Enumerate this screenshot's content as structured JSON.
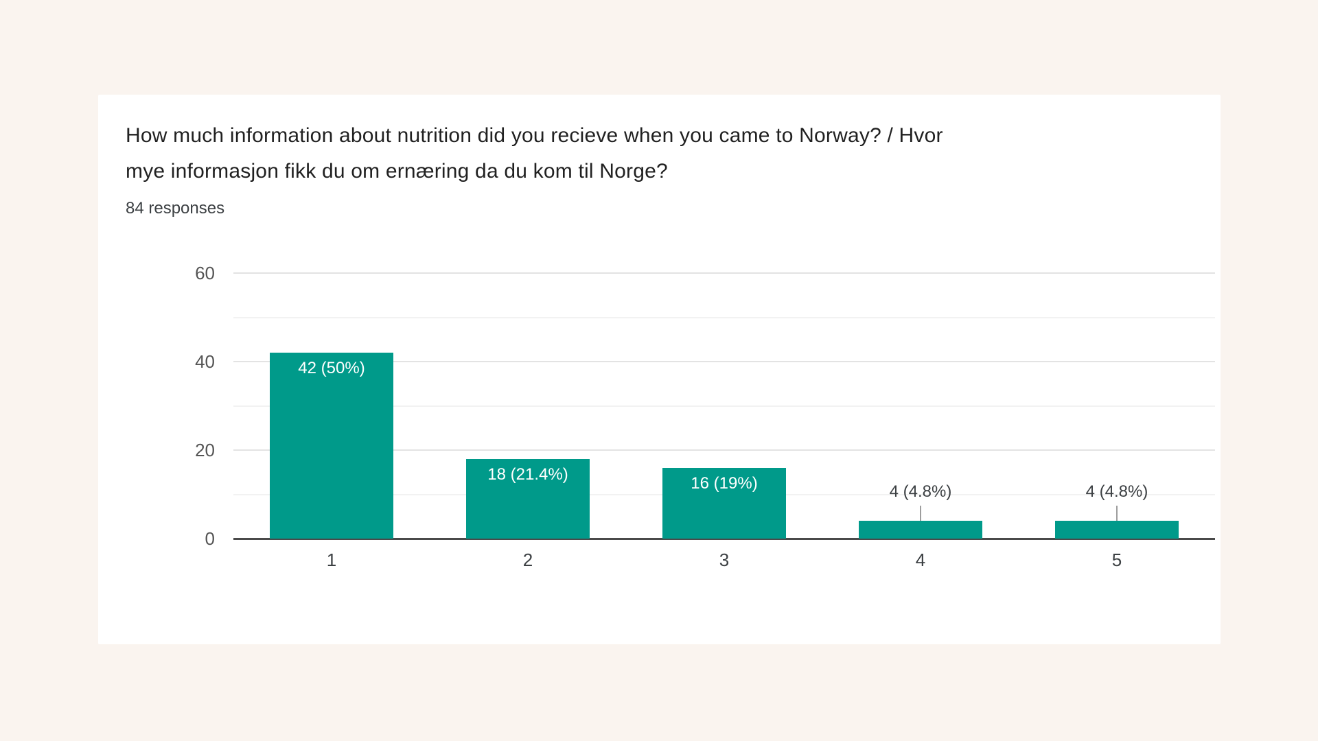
{
  "page": {
    "background_color": "#faf4ef",
    "card_color": "#ffffff"
  },
  "header": {
    "title_lines": [
      "How much information about nutrition did you recieve when you came to Norway? / Hvor",
      "mye informasjon fikk du om ernæring da du kom til Norge?"
    ],
    "responses_count": "84 responses"
  },
  "chart_data": {
    "type": "bar",
    "title": "How much information about nutrition did you recieve when you came to Norway? / Hvor mye informasjon fikk du om ernæring da du kom til Norge?",
    "categories": [
      "1",
      "2",
      "3",
      "4",
      "5"
    ],
    "values": [
      42,
      18,
      16,
      4,
      4
    ],
    "bar_labels": [
      "42 (50%)",
      "18 (21.4%)",
      "16 (19%)",
      "4 (4.8%)",
      "4 (4.8%)"
    ],
    "xlabel": "",
    "ylabel": "",
    "ylim": [
      0,
      60
    ],
    "yticks": [
      0,
      20,
      40,
      60
    ],
    "minor_gridlines": [
      10,
      30,
      50
    ],
    "bar_color": "#009a8a",
    "grid": true,
    "legend_position": "none",
    "total_responses": 84
  }
}
